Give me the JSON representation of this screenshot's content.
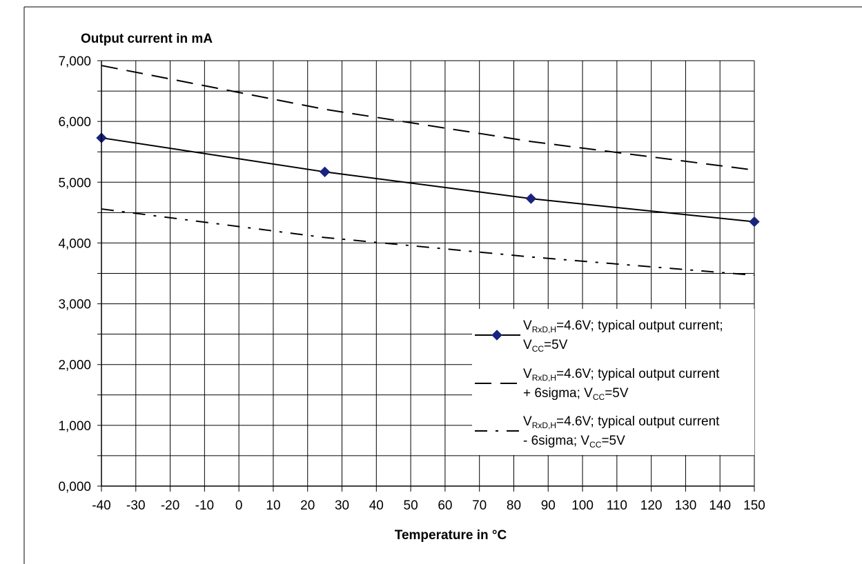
{
  "chart_data": {
    "type": "line",
    "title": "",
    "ylabel": "Output current in mA",
    "xlabel": "Temperature in °C",
    "xlim": [
      -40,
      150
    ],
    "ylim": [
      0,
      7000
    ],
    "x_ticks": [
      -40,
      -30,
      -20,
      -10,
      0,
      10,
      20,
      30,
      40,
      50,
      60,
      70,
      80,
      90,
      100,
      110,
      120,
      130,
      140,
      150
    ],
    "x_tick_labels": [
      "-40",
      "-30",
      "-20",
      "-10",
      "0",
      "10",
      "20",
      "30",
      "40",
      "50",
      "60",
      "70",
      "80",
      "90",
      "100",
      "110",
      "120",
      "130",
      "140",
      "150"
    ],
    "y_ticks": [
      0,
      1000,
      2000,
      3000,
      4000,
      5000,
      6000,
      7000
    ],
    "y_tick_labels": [
      "0,000",
      "1,000",
      "2,000",
      "3,000",
      "4,000",
      "5,000",
      "6,000",
      "7,000"
    ],
    "y_minor_gridlines": [
      500,
      1500,
      2500,
      3500,
      4500,
      5500,
      6500
    ],
    "grid": true,
    "legend_position": "bottom-right",
    "series": [
      {
        "legend": {
          "pre": "V",
          "sub": "RxD,H",
          "post": "=4.6V; typical output current;",
          "line2_pre": "V",
          "line2_sub": "CC",
          "line2_post": "=5V"
        },
        "style": "solid",
        "marker": "diamond",
        "color": "#000000",
        "marker_color": "#1a237e",
        "x": [
          -40,
          25,
          85,
          150
        ],
        "y": [
          5730,
          5170,
          4730,
          4350
        ]
      },
      {
        "legend": {
          "pre": "V",
          "sub": "RxD,H",
          "post": "=4.6V; typical output current",
          "line2_pre": "+ 6sigma; V",
          "line2_sub": "CC",
          "line2_post": "=5V"
        },
        "style": "dashed",
        "marker": "none",
        "color": "#000000",
        "x": [
          -40,
          25,
          85,
          150
        ],
        "y": [
          6920,
          6200,
          5670,
          5200
        ]
      },
      {
        "legend": {
          "pre": "V",
          "sub": "RxD,H",
          "post": "=4.6V; typical output current",
          "line2_pre": "- 6sigma; V",
          "line2_sub": "CC",
          "line2_post": "=5V"
        },
        "style": "dash-dot",
        "marker": "none",
        "color": "#000000",
        "x": [
          -40,
          25,
          85,
          150
        ],
        "y": [
          4560,
          4090,
          3770,
          3470
        ]
      }
    ]
  }
}
